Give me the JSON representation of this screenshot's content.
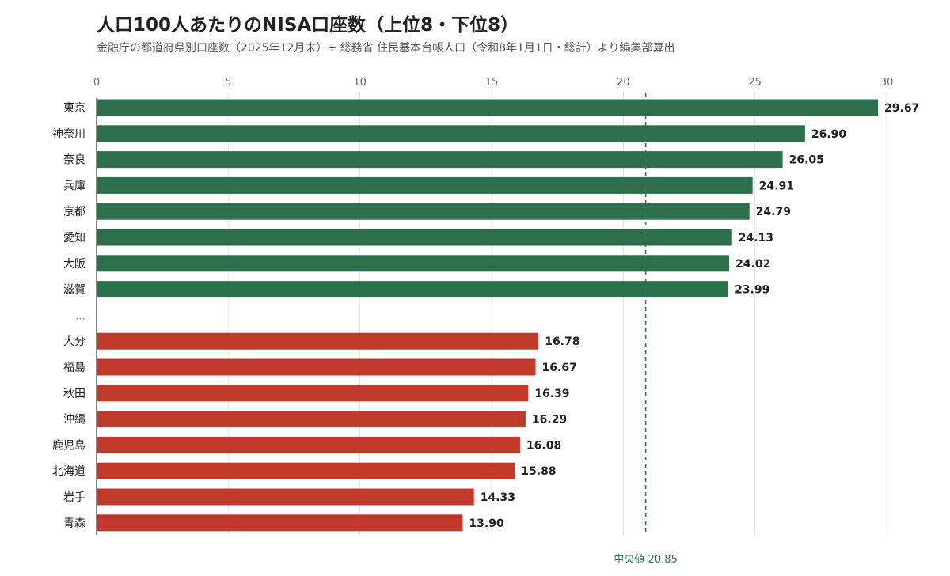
{
  "chart_data": {
    "type": "bar",
    "orientation": "horizontal",
    "title": "人口100人あたりのNISA口座数（上位8・下位8）",
    "subtitle": "金融庁の都道府県別口座数（2025年12月末）÷ 総務省 住民基本台帳人口（令和8年1月1日・総計）より編集部算出",
    "xlim": [
      0,
      30
    ],
    "ticks": [
      0,
      5,
      10,
      15,
      20,
      25,
      30
    ],
    "tick_labels": [
      "0",
      "5",
      "10",
      "15",
      "20",
      "25",
      "30"
    ],
    "grid": true,
    "top": {
      "color": "#2d6e4b",
      "categories": [
        "東京",
        "神奈川",
        "奈良",
        "兵庫",
        "京都",
        "愛知",
        "大阪",
        "滋賀"
      ],
      "values": [
        29.67,
        26.9,
        26.05,
        24.91,
        24.79,
        24.13,
        24.02,
        23.99
      ],
      "value_labels": [
        "29.67",
        "26.90",
        "26.05",
        "24.91",
        "24.79",
        "24.13",
        "24.02",
        "23.99"
      ]
    },
    "separator": "…",
    "bottom": {
      "color": "#c0392b",
      "categories": [
        "大分",
        "福島",
        "秋田",
        "沖縄",
        "鹿児島",
        "北海道",
        "岩手",
        "青森"
      ],
      "values": [
        16.78,
        16.67,
        16.39,
        16.29,
        16.08,
        15.88,
        14.33,
        13.9
      ],
      "value_labels": [
        "16.78",
        "16.67",
        "16.39",
        "16.29",
        "16.08",
        "15.88",
        "14.33",
        "13.90"
      ]
    },
    "median": {
      "value": 20.85,
      "label": "中央値 20.85",
      "color": "#2d7a4f"
    }
  }
}
